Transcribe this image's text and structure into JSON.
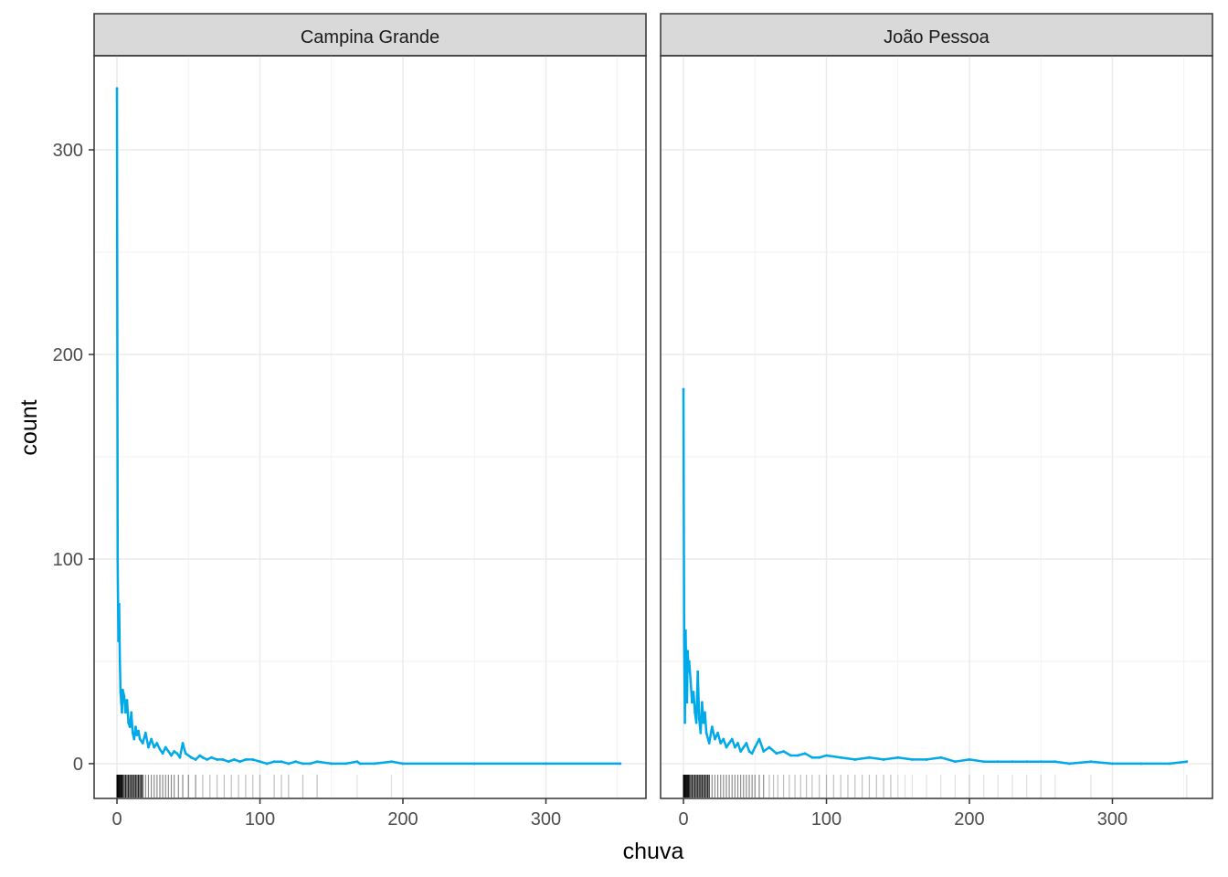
{
  "chart_data": {
    "type": "line",
    "facets": [
      {
        "label": "Campina Grande",
        "series": [
          {
            "x": [
              0,
              0.5,
              1,
              1.5,
              2,
              2.5,
              3,
              3.5,
              4,
              5,
              6,
              7,
              8,
              9,
              10,
              11,
              12,
              13,
              14,
              15,
              16,
              18,
              20,
              22,
              24,
              26,
              28,
              30,
              32,
              34,
              36,
              38,
              40,
              42,
              44,
              46,
              48,
              50,
              52,
              55,
              58,
              60,
              63,
              66,
              70,
              74,
              78,
              82,
              86,
              90,
              95,
              100,
              105,
              110,
              115,
              120,
              125,
              130,
              135,
              140,
              150,
              160,
              168,
              170,
              180,
              192,
              200,
              250,
              300,
              352
            ],
            "y": [
              330,
              100,
              60,
              78,
              50,
              35,
              30,
              25,
              36,
              33,
              25,
              31,
              20,
              18,
              25,
              15,
              12,
              18,
              14,
              16,
              12,
              10,
              15,
              8,
              12,
              8,
              10,
              7,
              5,
              8,
              6,
              4,
              6,
              5,
              3,
              10,
              5,
              4,
              3,
              2,
              4,
              3,
              2,
              3,
              2,
              2,
              1,
              2,
              1,
              2,
              2,
              1,
              0,
              1,
              1,
              0,
              1,
              0,
              0,
              1,
              0,
              0,
              1,
              0,
              0,
              1,
              0,
              0,
              0,
              0
            ]
          }
        ],
        "rug": [
          0,
          0.3,
          0.6,
          1,
          1.5,
          2,
          2.5,
          3,
          3.5,
          4,
          5,
          6,
          7,
          8,
          9,
          10,
          11,
          12,
          13,
          14,
          15,
          16,
          17,
          18,
          20,
          22,
          24,
          26,
          28,
          30,
          32,
          34,
          36,
          38,
          40,
          43,
          46,
          50,
          55,
          60,
          65,
          70,
          75,
          80,
          85,
          90,
          95,
          100,
          110,
          115,
          120,
          130,
          140,
          168,
          192
        ]
      },
      {
        "label": "João Pessoa",
        "series": [
          {
            "x": [
              0,
              0.5,
              1,
              1.5,
              2,
              2.5,
              3,
              3.5,
              4,
              5,
              6,
              7,
              8,
              9,
              10,
              11,
              12,
              13,
              14,
              15,
              16,
              18,
              20,
              22,
              24,
              26,
              28,
              30,
              32,
              34,
              36,
              38,
              40,
              42,
              44,
              46,
              48,
              50,
              53,
              56,
              60,
              65,
              70,
              75,
              80,
              85,
              90,
              95,
              100,
              110,
              120,
              130,
              140,
              150,
              160,
              170,
              180,
              190,
              200,
              210,
              220,
              230,
              240,
              250,
              260,
              270,
              285,
              300,
              320,
              340,
              352
            ],
            "y": [
              183,
              60,
              20,
              65,
              40,
              30,
              55,
              45,
              50,
              40,
              30,
              35,
              25,
              20,
              45,
              22,
              15,
              30,
              20,
              25,
              15,
              10,
              18,
              12,
              15,
              10,
              12,
              8,
              10,
              12,
              8,
              10,
              6,
              8,
              10,
              6,
              5,
              8,
              12,
              6,
              8,
              5,
              6,
              4,
              4,
              5,
              3,
              3,
              4,
              3,
              2,
              3,
              2,
              3,
              2,
              2,
              3,
              1,
              2,
              1,
              1,
              1,
              1,
              1,
              1,
              0,
              1,
              0,
              0,
              0,
              1
            ]
          }
        ],
        "rug": [
          0,
          0.3,
          0.6,
          1,
          1.5,
          2,
          2.5,
          3,
          3.5,
          4,
          5,
          6,
          7,
          8,
          9,
          10,
          11,
          12,
          13,
          14,
          15,
          16,
          17,
          18,
          20,
          22,
          24,
          26,
          28,
          30,
          32,
          34,
          36,
          38,
          40,
          42,
          44,
          46,
          48,
          50,
          53,
          56,
          60,
          63,
          66,
          70,
          74,
          78,
          82,
          86,
          90,
          95,
          100,
          105,
          110,
          115,
          120,
          125,
          130,
          135,
          140,
          145,
          150,
          155,
          160,
          170,
          180,
          190,
          200,
          210,
          220,
          230,
          240,
          250,
          260,
          285,
          352
        ]
      }
    ],
    "xlabel": "chuva",
    "ylabel": "count",
    "x_ticks": [
      0,
      100,
      200,
      300
    ],
    "y_ticks": [
      0,
      100,
      200,
      300
    ],
    "xlim": [
      -16,
      370
    ],
    "ylim": [
      -17,
      346
    ],
    "grid": true,
    "colors": {
      "line": "#00A9E8",
      "rug": "#000000",
      "strip": "#D9D9D9"
    }
  }
}
